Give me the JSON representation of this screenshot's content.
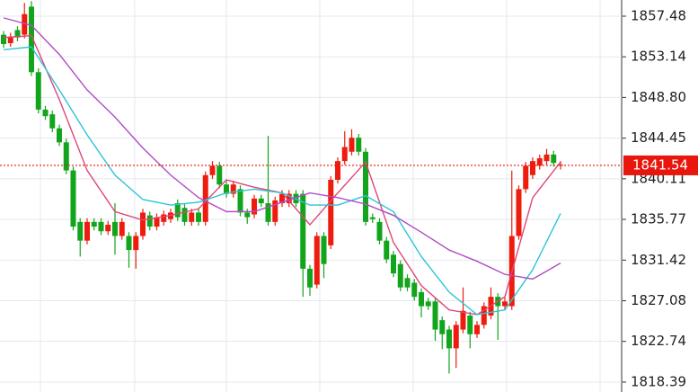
{
  "chart_data": {
    "type": "candlestick",
    "ylim": [
      1817.33,
      1859.21
    ],
    "yticks": [
      1857.48,
      1853.14,
      {
        "value": 1848.8,
        "label": "1848.80"
      },
      1844.45,
      1840.11,
      1835.77,
      1831.42,
      1827.08,
      1822.74,
      1818.39
    ],
    "grid": true,
    "up_color": "#ee1c0e",
    "down_color": "#12a51c",
    "last_price": 1841.54,
    "last_price_color": "#e8160c",
    "open": [
      1855.5,
      1854.6,
      1856.0,
      1855.5,
      1858.5,
      1851.5,
      1847.5,
      1847.0,
      1845.5,
      1844.0,
      1841.0,
      1835.5,
      1833.5,
      1835.5,
      1835.5,
      1834.5,
      1835.5,
      1834.0,
      1834.0,
      1832.5,
      1834.0,
      1836.2,
      1835.0,
      1835.5,
      1835.8,
      1837.5,
      1837.0,
      1835.5,
      1836.5,
      1835.5,
      1840.5,
      1841.5,
      1839.5,
      1838.5,
      1839.0,
      1836.5,
      1836.3,
      1838.0,
      1837.5,
      1835.5,
      1837.5,
      1837.5,
      1838.5,
      1838.5,
      1830.5,
      1828.8,
      1834.0,
      1833.0,
      1840.0,
      1842.0,
      1843.0,
      1844.5,
      1843.0,
      1836.0,
      1835.5,
      1833.5,
      1832.0,
      1831.0,
      1829.5,
      1829.0,
      1828.0,
      1827.0,
      1827.0,
      1825.0,
      1824.0,
      1822.0,
      1824.0,
      1825.5,
      1823.5,
      1824.5,
      1825.5,
      1827.5,
      1826.5,
      1826.5,
      1834.0,
      1839.0,
      1840.5,
      1841.5,
      1842.0,
      1842.7,
      1841.5
    ],
    "high": [
      1855.9,
      1855.7,
      1856.4,
      1858.9,
      1859.1,
      1851.9,
      1847.9,
      1847.4,
      1845.9,
      1844.4,
      1841.4,
      1835.9,
      1835.9,
      1835.9,
      1835.9,
      1835.6,
      1837.5,
      1835.9,
      1834.4,
      1834.4,
      1836.9,
      1836.6,
      1836.4,
      1836.7,
      1836.9,
      1837.9,
      1837.4,
      1836.9,
      1836.9,
      1840.9,
      1842.0,
      1841.9,
      1839.9,
      1839.9,
      1839.4,
      1836.9,
      1838.4,
      1838.4,
      1844.7,
      1838.2,
      1838.9,
      1838.9,
      1838.9,
      1838.9,
      1830.9,
      1834.4,
      1834.4,
      1840.4,
      1842.4,
      1845.2,
      1845.4,
      1844.9,
      1843.4,
      1836.4,
      1835.9,
      1833.9,
      1832.4,
      1831.4,
      1829.9,
      1829.4,
      1828.4,
      1827.4,
      1827.4,
      1825.4,
      1824.4,
      1824.9,
      1828.5,
      1825.9,
      1824.9,
      1826.9,
      1828.5,
      1827.9,
      1827.4,
      1841.0,
      1839.4,
      1841.9,
      1842.4,
      1842.7,
      1843.3,
      1843.1,
      1842.0
    ],
    "low": [
      1854.1,
      1854.2,
      1854.8,
      1855.1,
      1851.1,
      1847.1,
      1846.4,
      1845.1,
      1843.6,
      1840.6,
      1834.6,
      1831.8,
      1833.1,
      1834.6,
      1834.1,
      1834.1,
      1832.0,
      1833.6,
      1830.6,
      1830.5,
      1833.6,
      1834.6,
      1834.6,
      1835.1,
      1835.4,
      1835.6,
      1835.1,
      1835.1,
      1835.1,
      1835.1,
      1840.1,
      1839.1,
      1838.1,
      1838.1,
      1836.1,
      1835.3,
      1835.9,
      1837.1,
      1835.1,
      1835.1,
      1837.1,
      1837.1,
      1837.1,
      1827.5,
      1827.6,
      1828.4,
      1829.5,
      1832.6,
      1839.6,
      1841.6,
      1842.6,
      1842.6,
      1835.1,
      1835.4,
      1833.1,
      1831.1,
      1829.6,
      1828.1,
      1828.1,
      1827.1,
      1825.3,
      1826.1,
      1822.8,
      1821.9,
      1819.3,
      1819.9,
      1823.6,
      1822.0,
      1823.1,
      1824.1,
      1825.1,
      1822.9,
      1826.1,
      1826.1,
      1833.6,
      1838.6,
      1840.1,
      1841.1,
      1841.6,
      1841.4,
      1841.1
    ],
    "close": [
      1854.5,
      1855.3,
      1855.2,
      1857.7,
      1851.5,
      1847.5,
      1846.8,
      1845.5,
      1844.0,
      1841.0,
      1835.0,
      1833.5,
      1835.5,
      1835.0,
      1834.5,
      1835.2,
      1834.0,
      1835.5,
      1832.5,
      1834.0,
      1836.5,
      1835.0,
      1836.0,
      1836.3,
      1836.5,
      1836.0,
      1835.5,
      1836.5,
      1835.5,
      1840.5,
      1841.5,
      1839.5,
      1838.5,
      1839.5,
      1836.5,
      1836.0,
      1838.0,
      1837.5,
      1835.5,
      1837.8,
      1838.5,
      1838.5,
      1837.5,
      1830.5,
      1828.5,
      1834.0,
      1831.0,
      1840.0,
      1842.0,
      1843.5,
      1844.5,
      1843.0,
      1835.5,
      1835.8,
      1833.5,
      1831.5,
      1830.0,
      1828.5,
      1828.5,
      1827.5,
      1826.5,
      1826.5,
      1824.0,
      1823.5,
      1822.0,
      1824.5,
      1826.0,
      1823.5,
      1824.5,
      1826.5,
      1827.5,
      1826.5,
      1827.0,
      1834.0,
      1839.0,
      1841.5,
      1842.0,
      1842.3,
      1842.7,
      1841.8,
      1841.6
    ],
    "lines": [
      {
        "color": "#e0457a",
        "x": [
          0,
          4,
          8,
          12,
          16,
          20,
          24,
          28,
          32,
          36,
          40,
          44,
          48,
          52,
          56,
          60,
          64,
          68,
          72,
          76,
          80
        ],
        "values": [
          1855.2,
          1855.4,
          1848.6,
          1841.0,
          1836.6,
          1835.7,
          1836.2,
          1836.9,
          1840.0,
          1839.2,
          1838.6,
          1835.2,
          1838.6,
          1841.9,
          1833.3,
          1828.7,
          1826.1,
          1825.6,
          1827.5,
          1838.1,
          1841.9
        ]
      },
      {
        "color": "#2ec4d4",
        "x": [
          0,
          4,
          8,
          12,
          16,
          20,
          24,
          28,
          32,
          36,
          40,
          44,
          48,
          52,
          56,
          60,
          64,
          68,
          72,
          76,
          80
        ],
        "values": [
          1853.9,
          1854.2,
          1849.6,
          1844.8,
          1840.5,
          1837.9,
          1837.3,
          1837.6,
          1838.6,
          1839.0,
          1838.6,
          1837.3,
          1837.3,
          1838.3,
          1836.6,
          1831.8,
          1828.0,
          1825.6,
          1826.1,
          1830.4,
          1836.4
        ]
      },
      {
        "color": "#b04cc4",
        "x": [
          0,
          4,
          8,
          12,
          16,
          20,
          24,
          28,
          32,
          36,
          40,
          44,
          48,
          52,
          56,
          60,
          64,
          68,
          72,
          76,
          80
        ],
        "values": [
          1857.3,
          1856.5,
          1853.4,
          1849.6,
          1846.7,
          1843.4,
          1840.5,
          1838.1,
          1836.6,
          1836.6,
          1837.6,
          1838.6,
          1838.1,
          1837.4,
          1836.2,
          1834.4,
          1832.5,
          1831.3,
          1829.9,
          1829.4,
          1831.1
        ]
      }
    ]
  }
}
